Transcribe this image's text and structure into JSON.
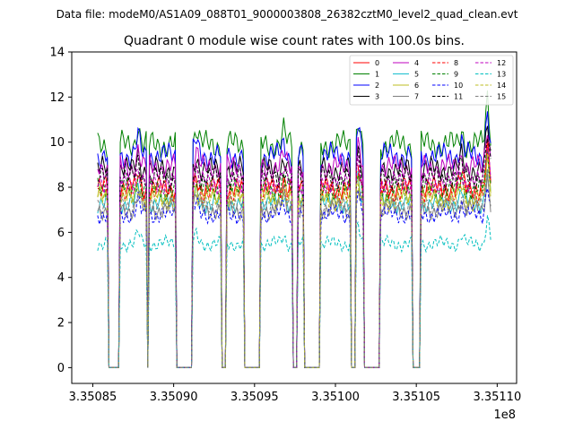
{
  "chart_data": {
    "type": "line",
    "suptitle": "Data file: modeM0/AS1A09_088T01_9000003808_26382cztM0_level2_quad_clean.evt",
    "title": "Quadrant 0 module wise count rates with 100.0s bins.",
    "xlabel": "",
    "ylabel": "",
    "x_offset_label": "1e8",
    "xlim": [
      335083700.0,
      335111200.0
    ],
    "ylim": [
      -0.7,
      14
    ],
    "x_ticks": [
      335085000.0,
      335090000.0,
      335095000.0,
      335100000.0,
      335105000.0,
      335110000.0
    ],
    "x_tick_labels": [
      "3.35085",
      "3.35090",
      "3.35095",
      "3.35100",
      "3.35105",
      "3.35110"
    ],
    "y_ticks": [
      0,
      2,
      4,
      6,
      8,
      10,
      12,
      14
    ],
    "y_tick_labels": [
      "0",
      "2",
      "4",
      "6",
      "8",
      "10",
      "12",
      "14"
    ],
    "grid": false,
    "legend": {
      "placement": "top-right",
      "columns": 4
    },
    "time_start": 335085300.0,
    "time_step": 100,
    "segments": [
      {
        "start": 335085300.0,
        "end": 335086000.0,
        "level": 1.0
      },
      {
        "start": 335086000.0,
        "end": 335086700.0,
        "level": 0.0
      },
      {
        "start": 335086700.0,
        "end": 335088400.0,
        "level": 1.0
      },
      {
        "start": 335088400.0,
        "end": 335088500.0,
        "level": 0.0
      },
      {
        "start": 335088500.0,
        "end": 335090200.0,
        "level": 1.0
      },
      {
        "start": 335090200.0,
        "end": 335091200.0,
        "level": 0.0
      },
      {
        "start": 335091200.0,
        "end": 335093000.0,
        "level": 1.0
      },
      {
        "start": 335093000.0,
        "end": 335093300.0,
        "level": 0.0
      },
      {
        "start": 335093300.0,
        "end": 335094400.0,
        "level": 1.0
      },
      {
        "start": 335094400.0,
        "end": 335095400.0,
        "level": 0.0
      },
      {
        "start": 335095400.0,
        "end": 335097400.0,
        "level": 1.0
      },
      {
        "start": 335097400.0,
        "end": 335097700.0,
        "level": 0.0
      },
      {
        "start": 335097700.0,
        "end": 335098100.0,
        "level": 1.0
      },
      {
        "start": 335098100.0,
        "end": 335099100.0,
        "level": 0.0
      },
      {
        "start": 335099100.0,
        "end": 335101000.0,
        "level": 1.0
      },
      {
        "start": 335101000.0,
        "end": 335101300.0,
        "level": 0.0
      },
      {
        "start": 335101300.0,
        "end": 335101800.0,
        "level": 1.0
      },
      {
        "start": 335101800.0,
        "end": 335102800.0,
        "level": 0.0
      },
      {
        "start": 335102800.0,
        "end": 335104800.0,
        "level": 1.0
      },
      {
        "start": 335104800.0,
        "end": 335105300.0,
        "level": 0.0
      },
      {
        "start": 335105300.0,
        "end": 335109600.0,
        "level": 1.0
      }
    ],
    "peaks": [
      {
        "t": 335087800.0,
        "boost": 1.09
      },
      {
        "t": 335091400.0,
        "boost": 1.07
      },
      {
        "t": 335096800.0,
        "boost": 1.06
      },
      {
        "t": 335101400.0,
        "boost": 1.13
      },
      {
        "t": 335107800.0,
        "boost": 1.07
      },
      {
        "t": 335109400.0,
        "boost": 1.22
      }
    ],
    "series": [
      {
        "name": "0",
        "color": "#ff0000",
        "dash": "solid",
        "level": 8.0
      },
      {
        "name": "1",
        "color": "#008000",
        "dash": "solid",
        "level": 9.9
      },
      {
        "name": "2",
        "color": "#0000ff",
        "dash": "solid",
        "level": 9.4
      },
      {
        "name": "3",
        "color": "#000000",
        "dash": "solid",
        "level": 8.8
      },
      {
        "name": "4",
        "color": "#bf00bf",
        "dash": "solid",
        "level": 8.9
      },
      {
        "name": "5",
        "color": "#17becf",
        "dash": "solid",
        "level": 7.3
      },
      {
        "name": "6",
        "color": "#bcbd22",
        "dash": "solid",
        "level": 7.6
      },
      {
        "name": "7",
        "color": "#7f7f7f",
        "dash": "solid",
        "level": 7.0
      },
      {
        "name": "8",
        "color": "#ff0000",
        "dash": "dashed",
        "level": 7.8
      },
      {
        "name": "9",
        "color": "#008000",
        "dash": "dashed",
        "level": 7.9
      },
      {
        "name": "10",
        "color": "#0000ff",
        "dash": "dashed",
        "level": 6.8
      },
      {
        "name": "11",
        "color": "#000000",
        "dash": "dashed",
        "level": 8.4
      },
      {
        "name": "12",
        "color": "#bf00bf",
        "dash": "dashed",
        "level": 8.2
      },
      {
        "name": "13",
        "color": "#00bfbf",
        "dash": "dashed",
        "level": 5.5
      },
      {
        "name": "14",
        "color": "#bcbd22",
        "dash": "dashed",
        "level": 7.4
      },
      {
        "name": "15",
        "color": "#7f7f7f",
        "dash": "dashed",
        "level": 7.2
      }
    ]
  }
}
